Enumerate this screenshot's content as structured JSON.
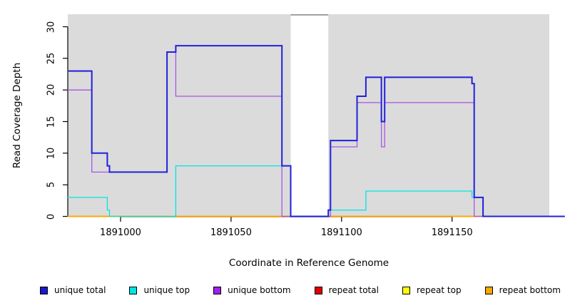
{
  "chart_data": {
    "type": "line",
    "subtype": "step-coverage-plot",
    "title": "",
    "xlabel": "Coordinate in Reference Genome",
    "ylabel": "Read Coverage Depth",
    "xlim": [
      1890976,
      1891201
    ],
    "ylim": [
      0,
      32
    ],
    "x_ticks": [
      1891000,
      1891050,
      1891100,
      1891150
    ],
    "y_ticks": [
      0,
      5,
      10,
      15,
      20,
      25,
      30
    ],
    "grid": false,
    "legend_position": "bottom",
    "panel_background": "#DBDBDB",
    "masked_region": {
      "x_start": 1891077,
      "x_end": 1891094,
      "fill": "#FFFFFF",
      "top_line_color": "#8C8C8C"
    },
    "series": [
      {
        "id": "repeat-total",
        "name": "repeat total",
        "color": "#DD0000",
        "line_width": 1.4,
        "segments": [
          [
            [
              1890976,
              0
            ],
            [
              1891077,
              0
            ]
          ],
          [
            [
              1891094,
              0
            ],
            [
              1891201,
              0
            ]
          ]
        ]
      },
      {
        "id": "repeat-top",
        "name": "repeat top",
        "color": "#FFFF00",
        "line_width": 1.4,
        "segments": [
          [
            [
              1890976,
              0
            ],
            [
              1891077,
              0
            ]
          ],
          [
            [
              1891094,
              0
            ],
            [
              1891201,
              0
            ]
          ]
        ]
      },
      {
        "id": "repeat-bottom",
        "name": "repeat bottom",
        "color": "#FFA500",
        "line_width": 1.8,
        "segments": [
          [
            [
              1890976,
              0
            ],
            [
              1891077,
              0
            ]
          ],
          [
            [
              1891094,
              0
            ],
            [
              1891201,
              0
            ]
          ]
        ]
      },
      {
        "id": "unique-bottom",
        "name": "unique bottom",
        "color": "#A855E6",
        "line_width": 1.3,
        "segments": [
          [
            [
              1890976,
              20
            ],
            [
              1890987,
              7
            ],
            [
              1891021,
              26
            ],
            [
              1891025,
              19
            ],
            [
              1891073,
              0
            ],
            [
              1891095,
              11
            ],
            [
              1891107,
              18
            ],
            [
              1891118,
              11
            ],
            [
              1891119.5,
              18
            ],
            [
              1891160,
              0
            ],
            [
              1891201,
              0
            ]
          ]
        ]
      },
      {
        "id": "unique-top",
        "name": "unique top",
        "color": "#00E5E5",
        "line_width": 1.3,
        "segments": [
          [
            [
              1890976,
              3
            ],
            [
              1890994,
              1
            ],
            [
              1890995,
              0
            ],
            [
              1891025,
              8
            ],
            [
              1891077,
              0
            ],
            [
              1891094,
              1
            ],
            [
              1891111,
              4
            ],
            [
              1891159,
              3
            ],
            [
              1891164,
              0
            ],
            [
              1891201,
              0
            ]
          ]
        ]
      },
      {
        "id": "unique-total",
        "name": "unique total",
        "color": "#2121DB",
        "line_width": 2,
        "segments": [
          [
            [
              1890976,
              23
            ],
            [
              1890987,
              10
            ],
            [
              1890994,
              8
            ],
            [
              1890995,
              7
            ],
            [
              1891021,
              26
            ],
            [
              1891025,
              27
            ],
            [
              1891073,
              8
            ],
            [
              1891077,
              0
            ],
            [
              1891094,
              1
            ],
            [
              1891095,
              12
            ],
            [
              1891107,
              19
            ],
            [
              1891111,
              22
            ],
            [
              1891118,
              15
            ],
            [
              1891119.5,
              22
            ],
            [
              1891159,
              21
            ],
            [
              1891160,
              3
            ],
            [
              1891164,
              0
            ],
            [
              1891201,
              0
            ]
          ]
        ]
      }
    ]
  },
  "legend": {
    "items": [
      {
        "id": "unique-total",
        "label": "unique total",
        "color": "#1A1ACC"
      },
      {
        "id": "unique-top",
        "label": "unique top",
        "color": "#00E5E5"
      },
      {
        "id": "unique-bottom",
        "label": "unique bottom",
        "color": "#A020F0"
      },
      {
        "id": "repeat-total",
        "label": "repeat total",
        "color": "#E00000"
      },
      {
        "id": "repeat-top",
        "label": "repeat top",
        "color": "#FFFF00"
      },
      {
        "id": "repeat-bottom",
        "label": "repeat bottom",
        "color": "#FFA500"
      }
    ]
  }
}
